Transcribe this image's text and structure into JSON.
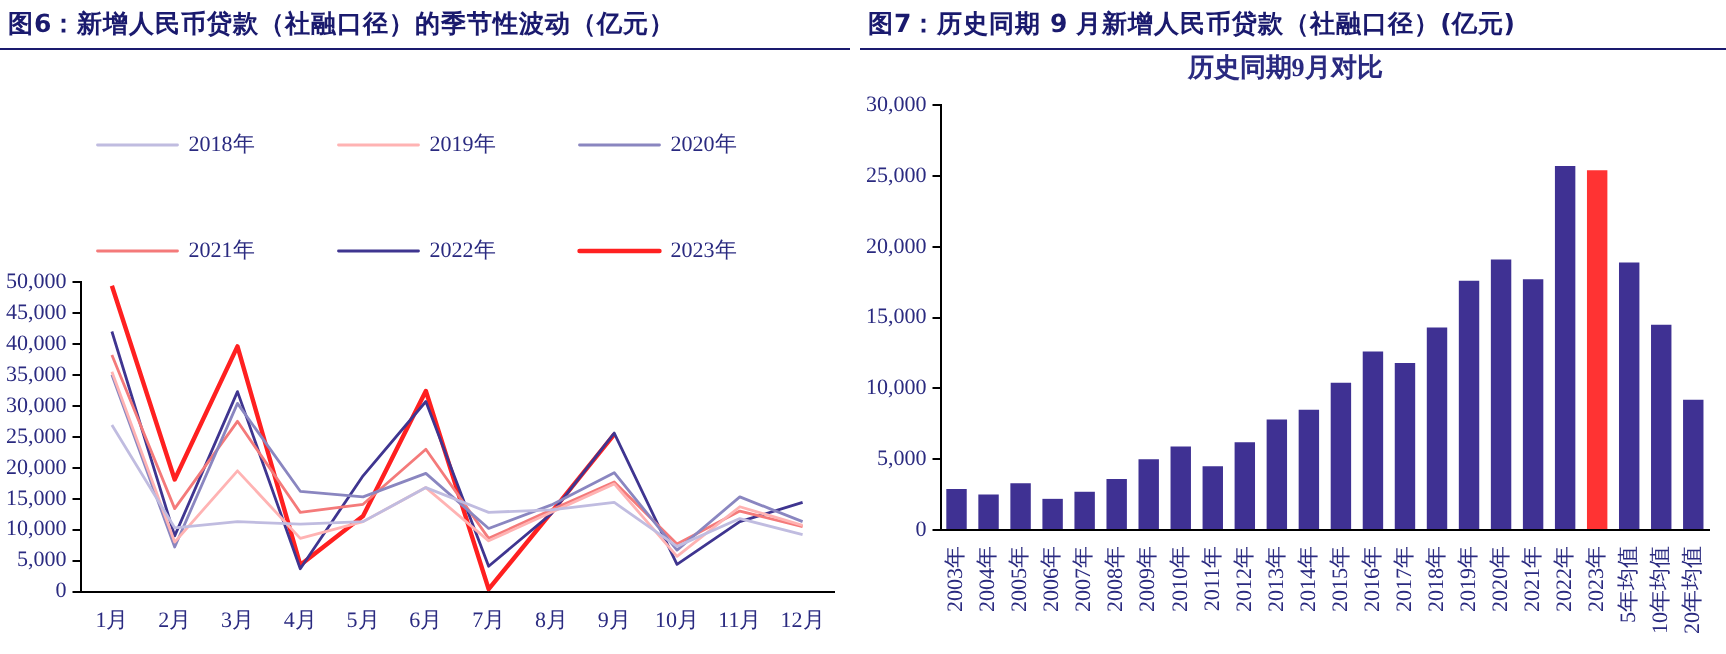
{
  "chart_data": [
    {
      "type": "line",
      "title": "图6：新增人民币贷款（社融口径）的季节性波动（亿元）",
      "categories": [
        "1月",
        "2月",
        "3月",
        "4月",
        "5月",
        "6月",
        "7月",
        "8月",
        "9月",
        "10月",
        "11月",
        "12月"
      ],
      "legend": "top",
      "grid": false,
      "ylim": [
        0,
        50000
      ],
      "yticks": [
        0,
        {
          "value": 5000,
          "label": "5,000"
        },
        {
          "value": 10000,
          "label": "10,000"
        },
        {
          "value": 15000,
          "label": "15,000"
        },
        {
          "value": 20000,
          "label": "20,000"
        },
        {
          "value": 25000,
          "label": "25,000"
        },
        {
          "value": 30000,
          "label": "30,000"
        },
        {
          "value": 35000,
          "label": "35,000"
        },
        {
          "value": 40000,
          "label": "40,000"
        },
        {
          "value": 45000,
          "label": "45,000"
        },
        {
          "value": 50000,
          "label": "50,000"
        }
      ],
      "series": [
        {
          "name": "2018年",
          "color": "#c0bce0",
          "values": [
            26900,
            10300,
            11300,
            10900,
            11300,
            16800,
            12800,
            13200,
            14400,
            7300,
            11800,
            9200
          ]
        },
        {
          "name": "2019年",
          "color": "#ffb3b3",
          "values": [
            35500,
            8000,
            19500,
            8600,
            11300,
            16800,
            8200,
            12800,
            17400,
            5700,
            13700,
            10700
          ]
        },
        {
          "name": "2020年",
          "color": "#8a86c0",
          "values": [
            35000,
            7200,
            30400,
            16200,
            15300,
            19100,
            10200,
            14000,
            19200,
            6700,
            15300,
            11300
          ]
        },
        {
          "name": "2021年",
          "color": "#f47a7a",
          "values": [
            38200,
            13400,
            27500,
            12800,
            14100,
            23000,
            8600,
            13200,
            17700,
            7700,
            13000,
            10500
          ]
        },
        {
          "name": "2022年",
          "color": "#3f3590",
          "values": [
            42000,
            9000,
            32300,
            3700,
            18700,
            30700,
            4100,
            12600,
            25600,
            4400,
            11300,
            14400
          ]
        },
        {
          "name": "2023年",
          "color": "#ff2020",
          "values": [
            49400,
            18100,
            39600,
            4300,
            12200,
            32400,
            400,
            12800,
            25400,
            null,
            null,
            null
          ]
        }
      ]
    },
    {
      "type": "bar",
      "title": "图7：历史同期 9 月新增人民币贷款（社融口径）(亿元)",
      "subtitle": "历史同期9月对比",
      "categories": [
        "2003年",
        "2004年",
        "2005年",
        "2006年",
        "2007年",
        "2008年",
        "2009年",
        "2010年",
        "2011年",
        "2012年",
        "2013年",
        "2014年",
        "2015年",
        "2016年",
        "2017年",
        "2018年",
        "2019年",
        "2020年",
        "2021年",
        "2022年",
        "2023年",
        "5年均值",
        "10年均值",
        "20年均值"
      ],
      "values": [
        2900,
        2500,
        3300,
        2200,
        2700,
        3600,
        5000,
        5900,
        4500,
        6200,
        7800,
        8500,
        10400,
        12600,
        11800,
        14300,
        17600,
        19100,
        17700,
        25700,
        25400,
        18900,
        14500,
        9200
      ],
      "colors": [
        "#3f3193",
        "#3f3193",
        "#3f3193",
        "#3f3193",
        "#3f3193",
        "#3f3193",
        "#3f3193",
        "#3f3193",
        "#3f3193",
        "#3f3193",
        "#3f3193",
        "#3f3193",
        "#3f3193",
        "#3f3193",
        "#3f3193",
        "#3f3193",
        "#3f3193",
        "#3f3193",
        "#3f3193",
        "#3f3193",
        "#ff3333",
        "#3f3193",
        "#3f3193",
        "#3f3193"
      ],
      "grid": false,
      "legend": false,
      "ylim": [
        0,
        30000
      ],
      "yticks": [
        0,
        {
          "value": 5000,
          "label": "5,000"
        },
        {
          "value": 10000,
          "label": "10,000"
        },
        {
          "value": 15000,
          "label": "15,000"
        },
        {
          "value": 20000,
          "label": "20,000"
        },
        {
          "value": 25000,
          "label": "25,000"
        },
        {
          "value": 30000,
          "label": "30,000"
        }
      ]
    }
  ]
}
